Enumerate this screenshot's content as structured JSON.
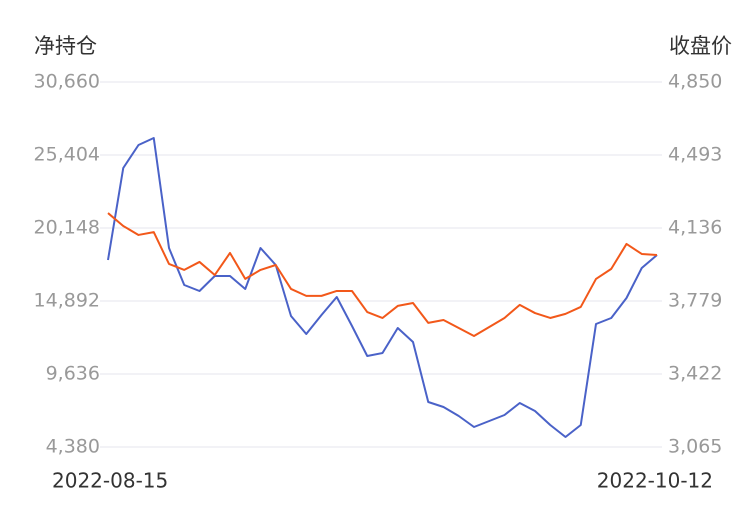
{
  "chart_data": {
    "type": "line",
    "y_label": "净持仓",
    "y2_label": "收盘价",
    "categories": [
      "2022-08-15",
      null,
      null,
      null,
      null,
      null,
      null,
      null,
      null,
      null,
      null,
      null,
      null,
      null,
      null,
      null,
      null,
      null,
      null,
      null,
      null,
      null,
      null,
      null,
      null,
      null,
      null,
      null,
      null,
      null,
      null,
      null,
      null,
      null,
      null,
      null,
      "2022-10-12"
    ],
    "series": [
      {
        "color": "#4a62c8",
        "values": [
          17844,
          24468,
          26124,
          26628,
          18708,
          16044,
          15612,
          16692,
          16692,
          15756,
          18708,
          17484,
          13812,
          12516,
          13884,
          15180,
          13092,
          10932,
          11148,
          12948,
          11940,
          7620,
          7260,
          6612,
          5820,
          6252,
          6684,
          7548,
          6972,
          5964,
          5100,
          5964,
          13236,
          13668,
          15108,
          17268,
          18204
        ]
      },
      {
        "color": "#f2581a",
        "axis": "y2",
        "values": [
          4209,
          4146,
          4102,
          4116,
          3960,
          3931,
          3970,
          3906,
          4014,
          3887,
          3931,
          3955,
          3838,
          3804,
          3804,
          3828,
          3828,
          3725,
          3696,
          3755,
          3769,
          3672,
          3686,
          3647,
          3608,
          3652,
          3696,
          3760,
          3720,
          3696,
          3716,
          3750,
          3887,
          3936,
          4058,
          4009,
          4004
        ]
      }
    ],
    "ylim": [
      4380,
      30660
    ],
    "yticks": [
      {
        "value": 4380,
        "label": "4,380"
      },
      {
        "value": 9636,
        "label": "9,636"
      },
      {
        "value": 14892,
        "label": "14,892"
      },
      {
        "value": 20148,
        "label": "20,148"
      },
      {
        "value": 25404,
        "label": "25,404"
      },
      {
        "value": 30660,
        "label": "30,660"
      }
    ],
    "y2lim": [
      3065,
      4850
    ],
    "y2ticks": [
      {
        "value": 3065,
        "label": "3,065"
      },
      {
        "value": 3422,
        "label": "3,422"
      },
      {
        "value": 3779,
        "label": "3,779"
      },
      {
        "value": 4136,
        "label": "4,136"
      },
      {
        "value": 4493,
        "label": "4,493"
      },
      {
        "value": 4850,
        "label": "4,850"
      }
    ],
    "grid": true
  }
}
